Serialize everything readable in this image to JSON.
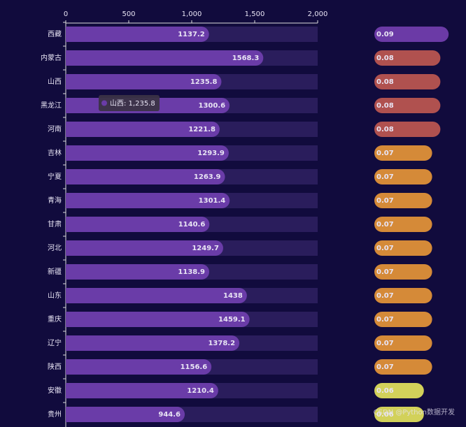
{
  "chart_data": [
    {
      "type": "bar",
      "orientation": "horizontal",
      "categories": [
        "西藏",
        "内蒙古",
        "山西",
        "黑龙江",
        "河南",
        "吉林",
        "宁夏",
        "青海",
        "甘肃",
        "河北",
        "新疆",
        "山东",
        "重庆",
        "辽宁",
        "陕西",
        "安徽",
        "贵州"
      ],
      "values": [
        1137.2,
        1568.3,
        1235.8,
        1300.6,
        1221.8,
        1293.9,
        1263.9,
        1301.4,
        1140.6,
        1249.7,
        1138.9,
        1438,
        1459.1,
        1378.2,
        1156.6,
        1210.4,
        944.6
      ],
      "color": "#6a3ca8",
      "background_color": "#2a1d5c",
      "xlim": [
        0,
        2000
      ],
      "xticks": [
        0,
        500,
        {
          "value": 1000,
          "label": "1,000"
        },
        {
          "value": 1500,
          "label": "1,500"
        },
        {
          "value": 2000,
          "label": "2,000"
        }
      ],
      "tooltip": "山西: 1,235.8"
    },
    {
      "type": "pill",
      "values": [
        0.09,
        0.08,
        0.08,
        0.08,
        0.08,
        0.07,
        0.07,
        0.07,
        0.07,
        0.07,
        0.07,
        0.07,
        0.07,
        0.07,
        0.07,
        0.06,
        0.06
      ],
      "colors": [
        "#6b3aa6",
        "#b0514f",
        "#b0514f",
        "#b0514f",
        "#b0514f",
        "#d58a38",
        "#d58a38",
        "#d58a38",
        "#d58a38",
        "#d58a38",
        "#d58a38",
        "#d58a38",
        "#d58a38",
        "#d58a38",
        "#d58a38",
        "#d2d15a",
        "#d2d15a"
      ]
    }
  ],
  "watermark": "CSDN @Python数据开发"
}
